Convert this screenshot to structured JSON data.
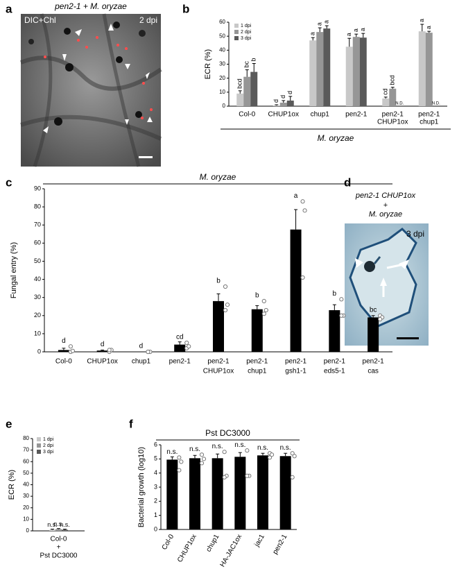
{
  "panel_labels": [
    "a",
    "b",
    "c",
    "d",
    "e",
    "f"
  ],
  "images": [
    {
      "title": [
        "pen2-1 + M. oryzae"
      ],
      "labels": [
        "DIC+Chl",
        "2 dpi"
      ]
    },
    {
      "title": [
        "pen2-1 CHUP1ox",
        "+",
        "M. oryzae"
      ],
      "labels": [
        "3 dpi"
      ]
    }
  ],
  "chart_data": [
    {
      "type": "bar",
      "title": "M. oryzae",
      "ylabel": "ECR (%)",
      "categories": [
        [
          "Col-0"
        ],
        [
          "CHUP1ox"
        ],
        [
          "chup1"
        ],
        [
          "pen2-1"
        ],
        [
          "pen2-1",
          "CHUP1ox"
        ],
        [
          "pen2-1",
          "chup1"
        ]
      ],
      "series": [
        {
          "name": "1 dpi",
          "color": "#c8c8c8",
          "values": [
            9,
            0.5,
            47,
            42.5,
            5.5,
            53.5
          ],
          "errors": [
            2,
            0.5,
            2,
            6,
            1,
            5
          ],
          "letters": [
            "bcd",
            "d",
            "a",
            "a",
            "cd",
            "a"
          ]
        },
        {
          "name": "2 dpi",
          "color": "#969696",
          "values": [
            21,
            2.5,
            53,
            49.5,
            12.5,
            52.5
          ],
          "errors": [
            5,
            1.5,
            3,
            2,
            1,
            1
          ],
          "letters": [
            "bc",
            "d",
            "a",
            "a",
            "bcd",
            "a"
          ]
        },
        {
          "name": "3 dpi",
          "color": "#5a5a5a",
          "values": [
            24.5,
            4,
            55.5,
            49,
            null,
            null
          ],
          "errors": [
            6,
            3,
            2,
            3,
            null,
            null
          ],
          "letters": [
            "b",
            "d",
            "a",
            "a",
            "N.D.",
            "N.D."
          ]
        }
      ],
      "ylim": [
        0,
        60
      ],
      "yticks": [
        0,
        10,
        20,
        30,
        40,
        50,
        60
      ],
      "legend": "top-left"
    },
    {
      "type": "bar",
      "title": "M. oryzae",
      "ylabel": "Fungal entry (%)",
      "categories": [
        [
          "Col-0"
        ],
        [
          "CHUP1ox"
        ],
        [
          "chup1"
        ],
        [
          "pen2-1"
        ],
        [
          "pen2-1",
          "CHUP1ox"
        ],
        [
          "pen2-1",
          "chup1"
        ],
        [
          "pen2-1",
          "gsh1-1"
        ],
        [
          "pen2-1",
          "eds5-1"
        ],
        [
          "pen2-1",
          "cas"
        ]
      ],
      "color": "#000000",
      "values": [
        1,
        0.7,
        0,
        4,
        28,
        23.5,
        67.5,
        23,
        19
      ],
      "errors": [
        1,
        0.3,
        0,
        1.5,
        4,
        2,
        11,
        3,
        1
      ],
      "dots": [
        [
          0,
          0.5,
          3
        ],
        [
          0,
          1,
          1
        ],
        [
          0,
          0,
          0
        ],
        [
          2,
          3,
          5
        ],
        [
          36,
          26,
          23
        ],
        [
          28,
          23,
          21
        ],
        [
          83,
          78,
          41
        ],
        [
          29,
          20,
          20
        ],
        [
          20,
          19,
          18
        ]
      ],
      "letters": [
        "d",
        "d",
        "d",
        "cd",
        "b",
        "b",
        "a",
        "b",
        "bc"
      ],
      "ylim": [
        0,
        90
      ],
      "yticks": [
        0,
        10,
        20,
        30,
        40,
        50,
        60,
        70,
        80,
        90
      ]
    },
    {
      "type": "bar",
      "ylabel": "ECR (%)",
      "categories": [
        [
          "Col-0",
          "+",
          "Pst DC3000"
        ]
      ],
      "series": [
        {
          "name": "1 dpi",
          "color": "#c8c8c8",
          "values": [
            1
          ],
          "errors": [
            0.5
          ],
          "letters": [
            "n.s."
          ]
        },
        {
          "name": "2 dpi",
          "color": "#969696",
          "values": [
            1.5
          ],
          "errors": [
            0.5
          ],
          "letters": [
            "n.s."
          ]
        },
        {
          "name": "3 dpi",
          "color": "#5a5a5a",
          "values": [
            1
          ],
          "errors": [
            0.5
          ],
          "letters": [
            "n.s."
          ]
        }
      ],
      "ylim": [
        0,
        80
      ],
      "yticks": [
        0,
        10,
        20,
        30,
        40,
        50,
        60,
        70,
        80
      ],
      "legend": "top-left"
    },
    {
      "type": "bar",
      "title": "Pst DC3000",
      "ylabel": "Bacterial growth (log10)",
      "categories": [
        [
          "Col-0"
        ],
        [
          "CHUP1ox"
        ],
        [
          "chup1"
        ],
        [
          "HA-JAC1ox"
        ],
        [
          "jac1"
        ],
        [
          "pen2-1"
        ]
      ],
      "color": "#000000",
      "values": [
        4.95,
        5.05,
        5.05,
        5.15,
        5.25,
        5.2
      ],
      "errors": [
        0.2,
        0.2,
        0.3,
        0.3,
        0.15,
        0.2
      ],
      "dots": [
        [
          5.1,
          4.8,
          4.2
        ],
        [
          5.3,
          5.0,
          4.7
        ],
        [
          5.5,
          3.8,
          3.7
        ],
        [
          5.6,
          3.8,
          3.8
        ],
        [
          5.4,
          5.3,
          5.1
        ],
        [
          5.4,
          5.2,
          3.7
        ]
      ],
      "letters": [
        "n.s.",
        "n.s.",
        "n.s.",
        "n.s.",
        "n.s.",
        "n.s."
      ],
      "ylim": [
        0,
        6
      ],
      "yticks": [
        0,
        1,
        2,
        3,
        4,
        5,
        6
      ]
    }
  ]
}
